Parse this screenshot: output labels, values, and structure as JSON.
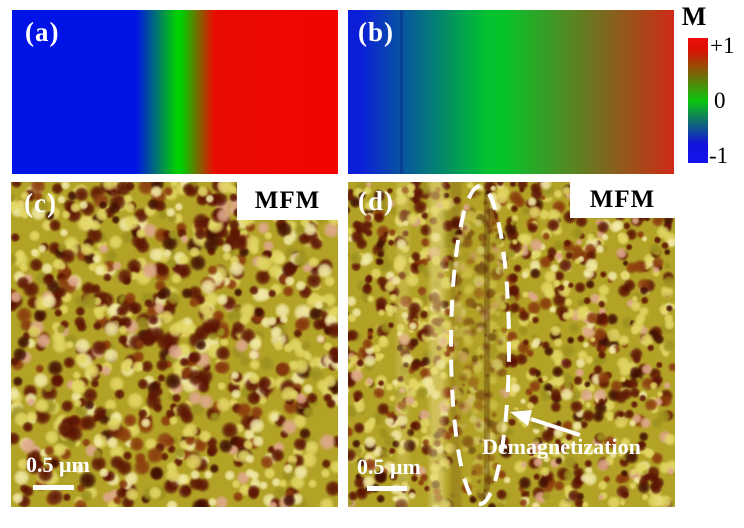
{
  "panels": {
    "a": {
      "label": "(a)"
    },
    "b": {
      "label": "(b)"
    },
    "c": {
      "label": "(c)",
      "badge": "MFM",
      "scale_label": "0.5 μm"
    },
    "d": {
      "label": "(d)",
      "badge": "MFM",
      "scale_label": "0.5 μm",
      "annotation": "Demagnetization"
    }
  },
  "colorbar": {
    "title": "M",
    "ticks": [
      {
        "label": "+1",
        "value": 1
      },
      {
        "label": "0",
        "value": 0
      },
      {
        "label": "-1",
        "value": -1
      }
    ],
    "gradient": [
      [
        0,
        "#ee0c0c"
      ],
      [
        0.1,
        "#d91202"
      ],
      [
        0.5,
        "#0cc60c"
      ],
      [
        0.85,
        "#1212da"
      ],
      [
        1,
        "#1414ee"
      ]
    ]
  },
  "simulation_gradients": {
    "a": [
      [
        0,
        "#0013e6"
      ],
      [
        0.38,
        "#0013e6"
      ],
      [
        0.505,
        "#00d000"
      ],
      [
        0.52,
        "#00cd00"
      ],
      [
        0.62,
        "#e80c00"
      ],
      [
        1,
        "#f20400"
      ]
    ],
    "b": [
      [
        0,
        "#0b1fd8"
      ],
      [
        0.04,
        "#0b1fd8"
      ],
      [
        0.42,
        "#00c030"
      ],
      [
        0.48,
        "#06c32a"
      ],
      [
        1,
        "#cf2a16"
      ]
    ]
  },
  "domain_wall_line": {
    "position": 0.16,
    "color": "#071173",
    "opacity": 0.3
  },
  "mfm_palette": {
    "base": "#b2a226",
    "blobs": [
      {
        "color": "#5c1504",
        "w": 0.26
      },
      {
        "color": "#401003",
        "w": 0.08
      },
      {
        "color": "#8a3b0d",
        "w": 0.1
      },
      {
        "color": "#e3d765",
        "w": 0.27
      },
      {
        "color": "#f2e9a6",
        "w": 0.14
      },
      {
        "color": "#9e9220",
        "w": 0.1
      },
      {
        "color": "#dfa98c",
        "w": 0.05
      }
    ],
    "annotation_color": "#ffffff"
  }
}
